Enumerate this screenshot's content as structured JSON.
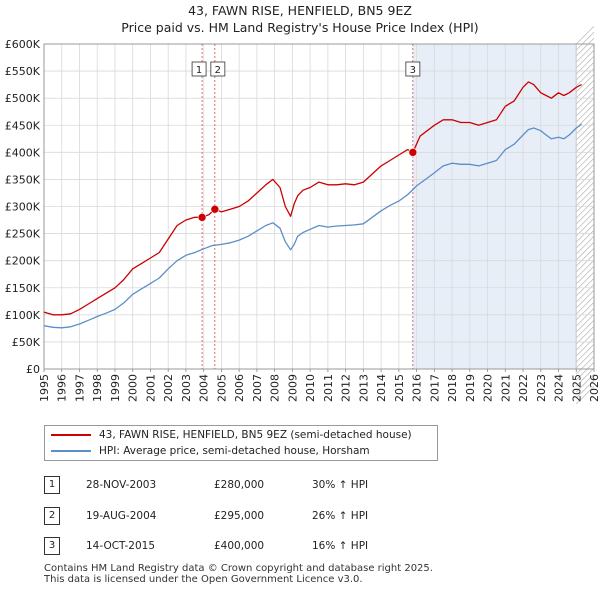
{
  "title": {
    "line1": "43, FAWN RISE, HENFIELD, BN5 9EZ",
    "line2": "Price paid vs. HM Land Registry's House Price Index (HPI)"
  },
  "legend": {
    "property_label": "43, FAWN RISE, HENFIELD, BN5 9EZ (semi-detached house)",
    "hpi_label": "HPI: Average price, semi-detached house, Horsham"
  },
  "sales": [
    {
      "num": "1",
      "date": "28-NOV-2003",
      "price": "£280,000",
      "hpi": "30% ↑ HPI"
    },
    {
      "num": "2",
      "date": "19-AUG-2004",
      "price": "£295,000",
      "hpi": "26% ↑ HPI"
    },
    {
      "num": "3",
      "date": "14-OCT-2015",
      "price": "£400,000",
      "hpi": "16% ↑ HPI"
    }
  ],
  "footer": {
    "line1": "Contains HM Land Registry data © Crown copyright and database right 2025.",
    "line2": "This data is licensed under the Open Government Licence v3.0."
  },
  "colors": {
    "property": "#cc0000",
    "hpi": "#5b8fc7",
    "shade": "#e8eef8",
    "marker_line": "#dd4444"
  },
  "chart_data": {
    "type": "line",
    "title": "Price paid vs. HM Land Registry's House Price Index (HPI)",
    "xlim": [
      1995,
      2026
    ],
    "ylim": [
      0,
      600000
    ],
    "xticks": [
      1995,
      1996,
      1997,
      1998,
      1999,
      2000,
      2001,
      2002,
      2003,
      2004,
      2005,
      2006,
      2007,
      2008,
      2009,
      2010,
      2011,
      2012,
      2013,
      2014,
      2015,
      2016,
      2017,
      2018,
      2019,
      2020,
      2021,
      2022,
      2023,
      2024,
      2025,
      2026
    ],
    "yticks": [
      0,
      50000,
      100000,
      150000,
      200000,
      250000,
      300000,
      350000,
      400000,
      450000,
      500000,
      550000,
      600000
    ],
    "ytick_labels": [
      "£0",
      "£50K",
      "£100K",
      "£150K",
      "£200K",
      "£250K",
      "£300K",
      "£350K",
      "£400K",
      "£450K",
      "£500K",
      "£550K",
      "£600K"
    ],
    "shaded_from": 2015.79,
    "forecast_from": 2025.0,
    "grid": true,
    "series": [
      {
        "name": "43, FAWN RISE, HENFIELD, BN5 9EZ (semi-detached house)",
        "x": [
          1995.0,
          1995.5,
          1996.0,
          1996.5,
          1997.0,
          1997.5,
          1998.0,
          1998.5,
          1999.0,
          1999.5,
          2000.0,
          2000.5,
          2001.0,
          2001.5,
          2002.0,
          2002.5,
          2003.0,
          2003.5,
          2003.91,
          2004.3,
          2004.63,
          2005.0,
          2005.5,
          2006.0,
          2006.5,
          2007.0,
          2007.5,
          2007.9,
          2008.3,
          2008.6,
          2008.9,
          2009.1,
          2009.3,
          2009.6,
          2010.0,
          2010.5,
          2011.0,
          2011.5,
          2012.0,
          2012.5,
          2013.0,
          2013.5,
          2014.0,
          2014.5,
          2015.0,
          2015.5,
          2015.79,
          2016.2,
          2016.6,
          2017.0,
          2017.5,
          2018.0,
          2018.5,
          2019.0,
          2019.5,
          2020.0,
          2020.5,
          2021.0,
          2021.5,
          2022.0,
          2022.3,
          2022.6,
          2023.0,
          2023.3,
          2023.6,
          2024.0,
          2024.3,
          2024.6,
          2025.0,
          2025.3
        ],
        "values": [
          105000,
          100000,
          100000,
          102000,
          110000,
          120000,
          130000,
          140000,
          150000,
          165000,
          185000,
          195000,
          205000,
          215000,
          240000,
          265000,
          275000,
          280000,
          280000,
          285000,
          295000,
          290000,
          295000,
          300000,
          310000,
          325000,
          340000,
          350000,
          335000,
          300000,
          282000,
          305000,
          320000,
          330000,
          335000,
          345000,
          340000,
          340000,
          342000,
          340000,
          345000,
          360000,
          375000,
          385000,
          395000,
          405000,
          400000,
          430000,
          440000,
          450000,
          460000,
          460000,
          455000,
          455000,
          450000,
          455000,
          460000,
          485000,
          495000,
          520000,
          530000,
          525000,
          510000,
          505000,
          500000,
          510000,
          505000,
          510000,
          520000,
          525000
        ]
      },
      {
        "name": "HPI: Average price, semi-detached house, Horsham",
        "x": [
          1995.0,
          1995.5,
          1996.0,
          1996.5,
          1997.0,
          1997.5,
          1998.0,
          1998.5,
          1999.0,
          1999.5,
          2000.0,
          2000.5,
          2001.0,
          2001.5,
          2002.0,
          2002.5,
          2003.0,
          2003.5,
          2004.0,
          2004.5,
          2005.0,
          2005.5,
          2006.0,
          2006.5,
          2007.0,
          2007.5,
          2007.9,
          2008.3,
          2008.6,
          2008.9,
          2009.1,
          2009.3,
          2009.6,
          2010.0,
          2010.5,
          2011.0,
          2011.5,
          2012.0,
          2012.5,
          2013.0,
          2013.5,
          2014.0,
          2014.5,
          2015.0,
          2015.5,
          2016.0,
          2016.5,
          2017.0,
          2017.5,
          2018.0,
          2018.5,
          2019.0,
          2019.5,
          2020.0,
          2020.5,
          2021.0,
          2021.5,
          2022.0,
          2022.3,
          2022.6,
          2023.0,
          2023.3,
          2023.6,
          2024.0,
          2024.3,
          2024.6,
          2025.0,
          2025.3
        ],
        "values": [
          80000,
          77000,
          76000,
          78000,
          83000,
          90000,
          97000,
          103000,
          110000,
          122000,
          138000,
          148000,
          158000,
          168000,
          185000,
          200000,
          210000,
          215000,
          222000,
          228000,
          230000,
          233000,
          238000,
          245000,
          255000,
          265000,
          270000,
          260000,
          235000,
          220000,
          230000,
          245000,
          252000,
          258000,
          265000,
          262000,
          264000,
          265000,
          266000,
          268000,
          280000,
          292000,
          302000,
          310000,
          322000,
          338000,
          350000,
          362000,
          375000,
          380000,
          378000,
          378000,
          375000,
          380000,
          385000,
          405000,
          415000,
          432000,
          442000,
          445000,
          440000,
          432000,
          425000,
          428000,
          425000,
          432000,
          445000,
          452000
        ]
      }
    ],
    "transactions": [
      {
        "label": "1",
        "x": 2003.91,
        "value": 280000
      },
      {
        "label": "2",
        "x": 2004.63,
        "value": 295000
      },
      {
        "label": "3",
        "x": 2015.79,
        "value": 400000
      }
    ]
  }
}
